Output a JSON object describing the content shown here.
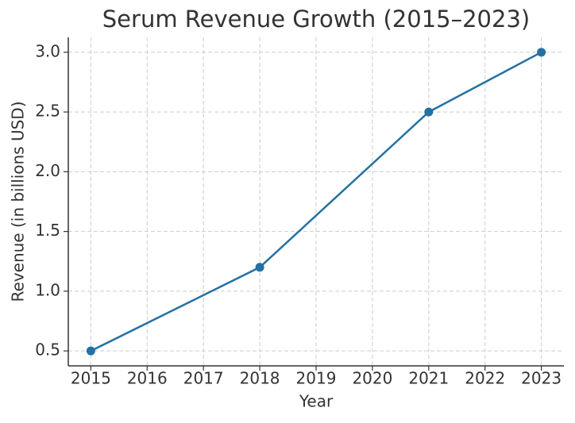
{
  "chart_data": {
    "type": "line",
    "title": "Serum Revenue Growth (2015–2023)",
    "x_label": "Year",
    "y_label": "Revenue (in billions USD)",
    "x": [
      2015,
      2018,
      2021,
      2023
    ],
    "series": [
      {
        "color": "#2471a3",
        "values": [
          0.5,
          1.2,
          2.5,
          3.0
        ]
      }
    ],
    "xlim": [
      2014.6,
      2023.4
    ],
    "xticks": [
      2015,
      2016,
      2017,
      2018,
      2019,
      2020,
      2021,
      2022,
      2023
    ],
    "ylim": [
      0.375,
      3.125
    ],
    "yticks": [
      0.5,
      {
        "value": 1,
        "label": "1.0"
      },
      1.5,
      {
        "value": 2,
        "label": "2.0"
      },
      2.5,
      {
        "value": 3,
        "label": "3.0"
      }
    ],
    "grid": true
  }
}
